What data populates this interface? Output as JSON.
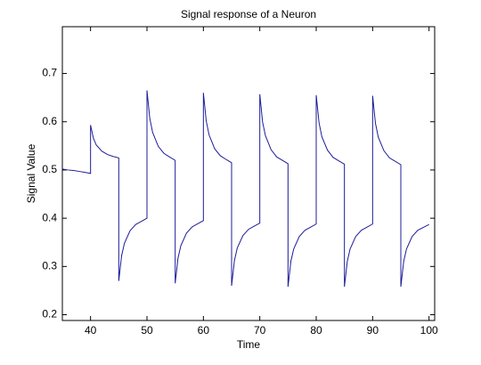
{
  "chart_data": {
    "type": "line",
    "title": "Signal response of a Neuron",
    "x_label": "Time",
    "y_label": "Signal Value",
    "x": [
      35,
      36,
      37,
      38,
      39,
      40,
      40,
      40.5,
      41,
      42,
      43,
      44,
      45,
      45,
      45.5,
      46,
      47,
      48,
      49,
      50,
      50,
      50.5,
      51,
      52,
      53,
      54,
      55,
      55,
      55.5,
      56,
      57,
      58,
      59,
      60,
      60,
      60.5,
      61,
      62,
      63,
      64,
      65,
      65,
      65.5,
      66,
      67,
      68,
      69,
      70,
      70,
      70.5,
      71,
      72,
      73,
      74,
      75,
      75,
      75.5,
      76,
      77,
      78,
      79,
      80,
      80,
      80.5,
      81,
      82,
      83,
      84,
      85,
      85,
      85.5,
      86,
      87,
      88,
      89,
      90,
      90,
      90.5,
      91,
      92,
      93,
      94,
      95,
      95,
      95.5,
      96,
      97,
      98,
      99,
      100
    ],
    "series": [
      {
        "color": "#1c1c9a",
        "values": [
          0.502,
          0.5,
          0.499,
          0.497,
          0.495,
          0.493,
          0.593,
          0.566,
          0.552,
          0.539,
          0.532,
          0.528,
          0.525,
          0.27,
          0.322,
          0.348,
          0.374,
          0.387,
          0.3935,
          0.4,
          0.665,
          0.607,
          0.578,
          0.549,
          0.5345,
          0.527,
          0.52,
          0.265,
          0.317,
          0.343,
          0.369,
          0.382,
          0.3885,
          0.395,
          0.66,
          0.602,
          0.573,
          0.544,
          0.5295,
          0.522,
          0.515,
          0.26,
          0.312,
          0.338,
          0.364,
          0.377,
          0.3835,
          0.39,
          0.657,
          0.599,
          0.571,
          0.542,
          0.527,
          0.52,
          0.513,
          0.258,
          0.31,
          0.336,
          0.362,
          0.375,
          0.3815,
          0.388,
          0.655,
          0.598,
          0.569,
          0.541,
          0.526,
          0.519,
          0.512,
          0.258,
          0.31,
          0.336,
          0.362,
          0.375,
          0.3815,
          0.388,
          0.654,
          0.597,
          0.568,
          0.54,
          0.525,
          0.518,
          0.511,
          0.258,
          0.31,
          0.336,
          0.362,
          0.375,
          0.381,
          0.387
        ]
      }
    ],
    "xlim": [
      35,
      101
    ],
    "xticks": [
      40,
      50,
      60,
      70,
      80,
      90,
      100
    ],
    "ylim": [
      0.188,
      0.797
    ],
    "yticks": [
      0.2,
      0.3,
      0.4,
      0.5,
      0.6,
      0.7
    ]
  }
}
